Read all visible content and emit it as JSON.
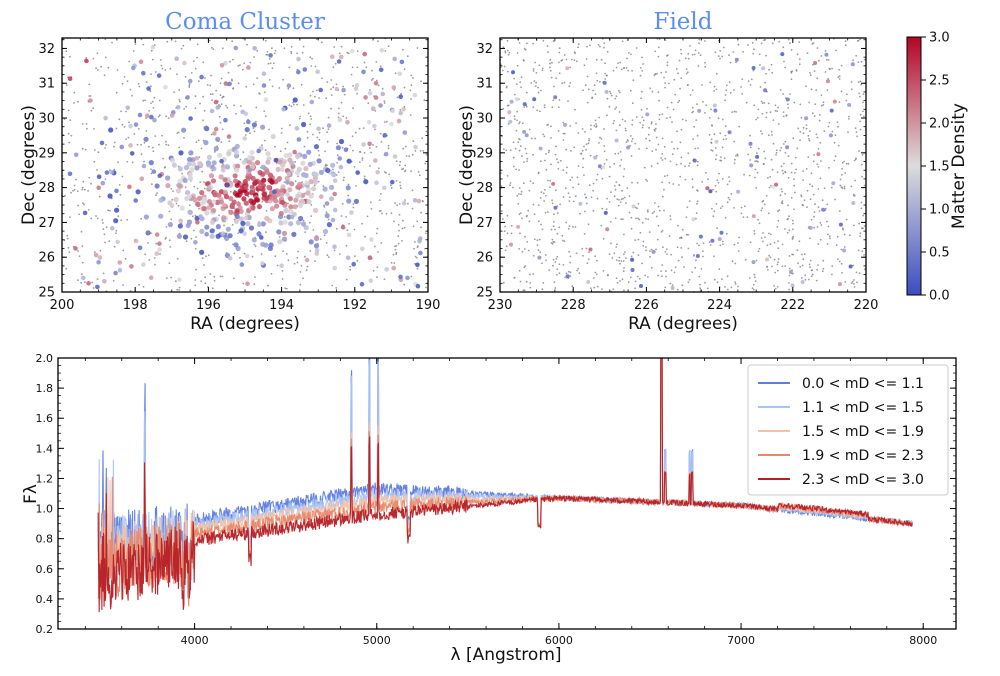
{
  "chart_data": [
    {
      "type": "scatter",
      "title": "Coma Cluster",
      "xlabel": "RA (degrees)",
      "ylabel": "Dec (degrees)",
      "xlim": [
        200,
        190
      ],
      "ylim": [
        25,
        32.3
      ],
      "x_inverted": true,
      "xticks": [
        200,
        198,
        196,
        194,
        192,
        190
      ],
      "yticks": [
        25,
        26,
        27,
        28,
        29,
        30,
        31,
        32
      ],
      "color_variable": "Matter Density",
      "dense_core": {
        "ra": 194.9,
        "dec": 27.9
      },
      "background_points": "small grey points spread across field",
      "colored_points": "large points colored by matter density"
    },
    {
      "type": "scatter",
      "title": "Field",
      "xlabel": "RA (degrees)",
      "ylabel": "Dec (degrees)",
      "xlim": [
        230,
        220
      ],
      "ylim": [
        25,
        32.3
      ],
      "x_inverted": true,
      "xticks": [
        230,
        228,
        226,
        224,
        222,
        220
      ],
      "yticks": [
        25,
        26,
        27,
        28,
        29,
        30,
        31,
        32
      ],
      "color_variable": "Matter Density",
      "background_points": "small grey points spread across field",
      "colored_points": "sparse large points colored by matter density"
    },
    {
      "type": "colorbar",
      "label": "Matter Density",
      "range": [
        0.0,
        3.0
      ],
      "ticks": [
        "0.0",
        "0.5",
        "1.0",
        "1.5",
        "2.0",
        "2.5",
        "3.0"
      ],
      "colormap": "coolwarm",
      "colors": {
        "low": "#3b4cc0",
        "mid": "#dddcdc",
        "high": "#b40426"
      }
    },
    {
      "type": "line",
      "xlabel": "λ [Angstrom]",
      "ylabel": "Fλ",
      "xlim": [
        3250,
        8180
      ],
      "ylim": [
        0.2,
        2.0
      ],
      "xticks": [
        4000,
        5000,
        6000,
        7000,
        8000
      ],
      "yticks": [
        "0.2",
        "0.4",
        "0.6",
        "0.8",
        "1.0",
        "1.2",
        "1.4",
        "1.6",
        "1.8",
        "2.0"
      ],
      "legend_position": "top-right",
      "series": [
        {
          "name": "0.0 < mD <= 1.1",
          "color": "#5d7de0",
          "continuum_level": 1.13,
          "blue_level": 0.78
        },
        {
          "name": "1.1 < mD <= 1.5",
          "color": "#a9c3f6",
          "continuum_level": 1.09,
          "blue_level": 0.72
        },
        {
          "name": "1.5 < mD <= 1.9",
          "color": "#f2c2a8",
          "continuum_level": 1.05,
          "blue_level": 0.66
        },
        {
          "name": "1.9 < mD <= 2.3",
          "color": "#e6886c",
          "continuum_level": 1.01,
          "blue_level": 0.6
        },
        {
          "name": "2.3 < mD <= 3.0",
          "color": "#b51f25",
          "continuum_level": 0.96,
          "blue_level": 0.52
        }
      ],
      "emission_lines_angstrom": [
        3727,
        4861,
        4959,
        5007,
        6563,
        6584,
        6717,
        6731
      ],
      "absorption_features_angstrom": [
        3934,
        3969,
        4304,
        5175,
        5893
      ]
    }
  ]
}
